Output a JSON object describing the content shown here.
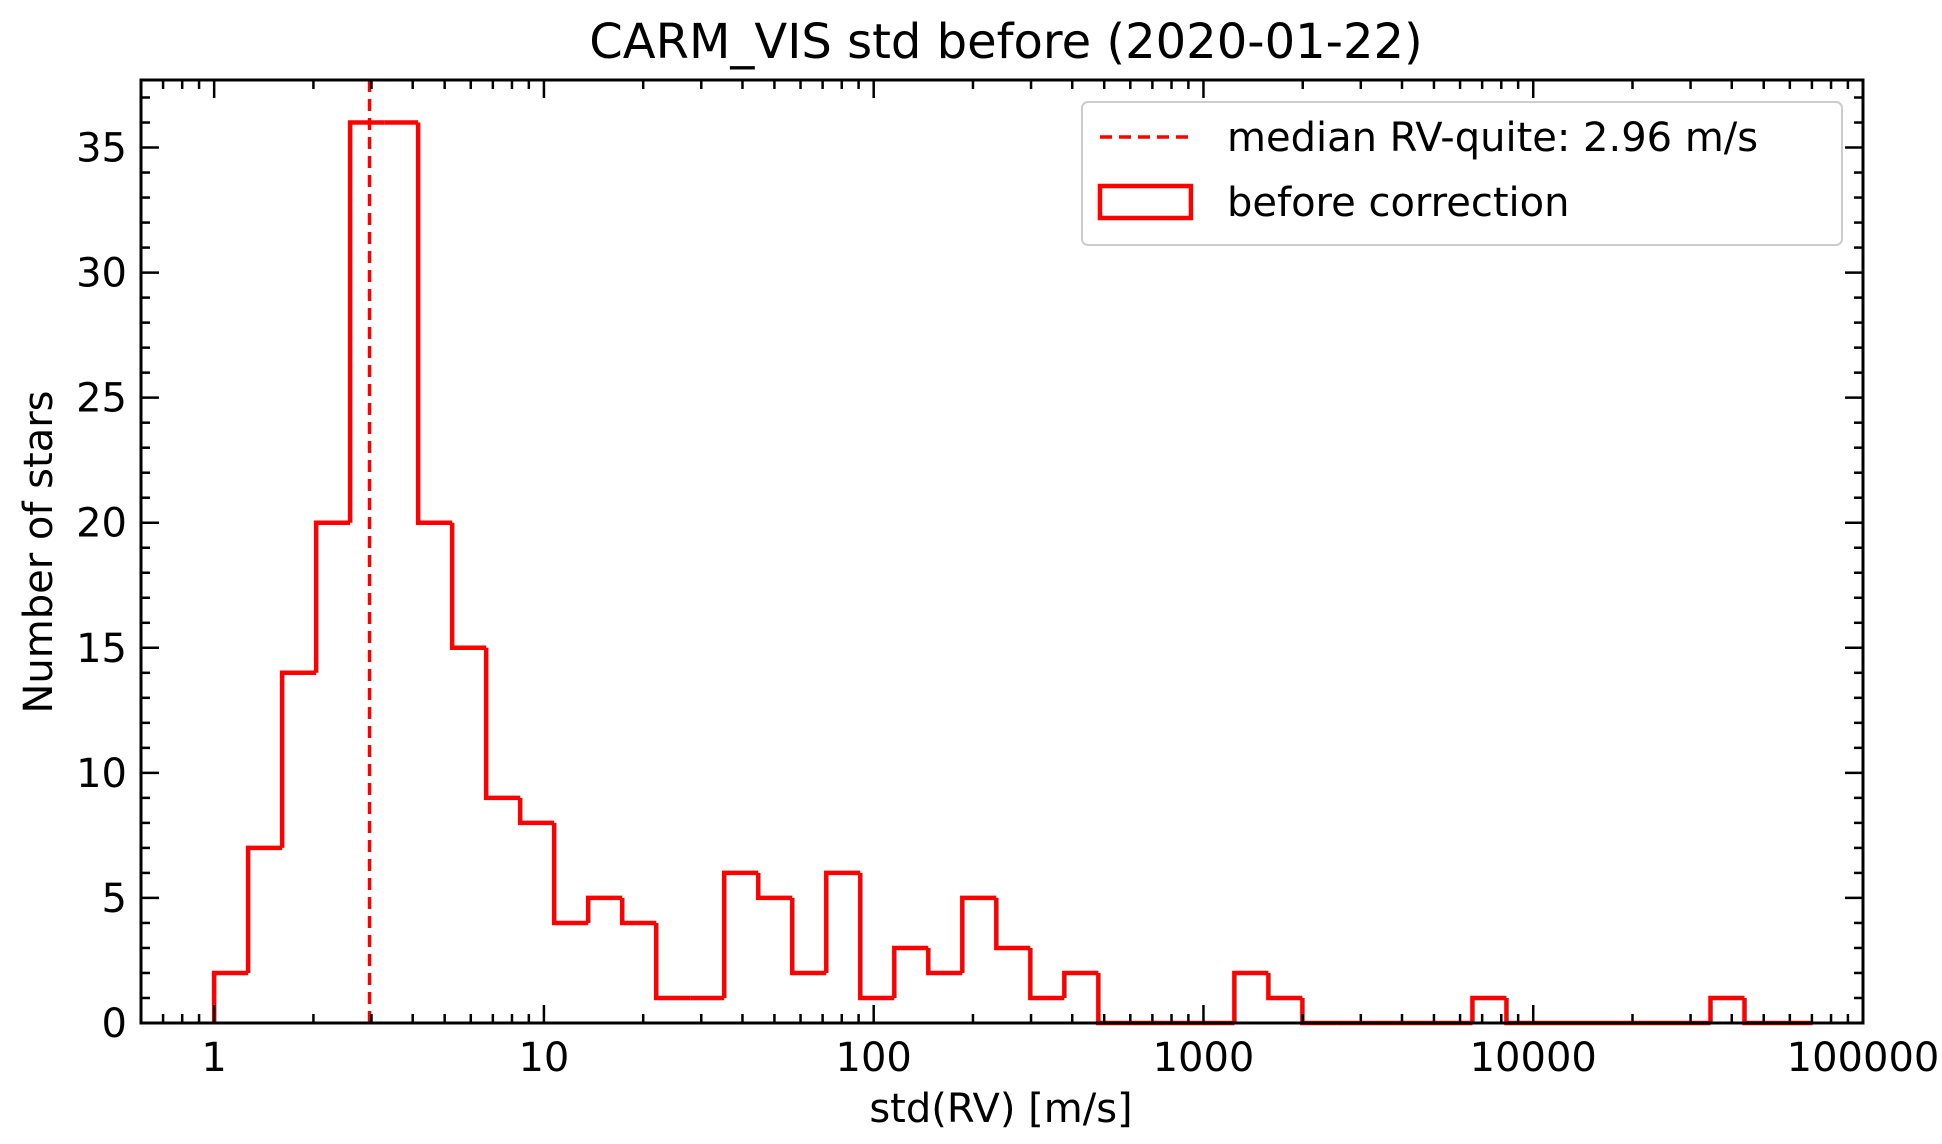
{
  "chart_data": {
    "type": "bar",
    "title": "CARM_VIS std before (2020-01-22)",
    "xlabel": "std(RV) [m/s]",
    "ylabel": "Number of stars",
    "xscale": "log",
    "xlim": [
      0.6,
      100000
    ],
    "ylim": [
      0,
      37.7
    ],
    "x_ticks": [
      1,
      10,
      100,
      1000,
      10000,
      100000
    ],
    "x_tick_labels": [
      "1",
      "10",
      "100",
      "1000",
      "10000",
      "100000"
    ],
    "y_ticks": [
      0,
      5,
      10,
      15,
      20,
      25,
      30,
      35
    ],
    "y_tick_labels": [
      "0",
      "5",
      "10",
      "15",
      "20",
      "25",
      "30",
      "35"
    ],
    "series": [
      {
        "name": "before correction",
        "color": "#ff0000",
        "bin_edges": [
          1,
          1.268,
          1.608,
          2.039,
          2.585,
          3.278,
          4.156,
          5.27,
          6.683,
          8.474,
          10.745,
          13.625,
          17.277,
          21.907,
          27.779,
          35.224,
          44.665,
          56.636,
          71.816,
          91.065,
          115.473,
          146.422,
          185.667,
          235.43,
          298.531,
          378.545,
          480.005,
          608.659,
          771.795,
          978.654,
          1240.957,
          1573.564,
          1995.317,
          2530.112,
          3208.246,
          4068.136,
          5158.503,
          6541.105,
          8294.275,
          10517.331,
          13336.211,
          16910.636,
          21443.08,
          27190.299,
          34477.873,
          43718.696,
          55436.238,
          70294.293
        ],
        "counts": [
          2,
          7,
          14,
          20,
          36,
          36,
          20,
          15,
          9,
          8,
          4,
          5,
          4,
          1,
          1,
          6,
          5,
          2,
          6,
          1,
          3,
          2,
          5,
          3,
          1,
          2,
          0,
          0,
          0,
          0,
          2,
          1,
          0,
          0,
          0,
          0,
          0,
          1,
          0,
          0,
          0,
          0,
          0,
          0,
          1,
          0,
          0
        ]
      }
    ],
    "median_line": {
      "name": "median RV-quite: 2.96 m/s",
      "x": 2.96,
      "color": "#ff0000",
      "style": "dashed"
    },
    "legend": {
      "placement": "top-right",
      "entries": [
        "median RV-quite: 2.96 m/s",
        "before correction"
      ]
    },
    "grid": false
  }
}
